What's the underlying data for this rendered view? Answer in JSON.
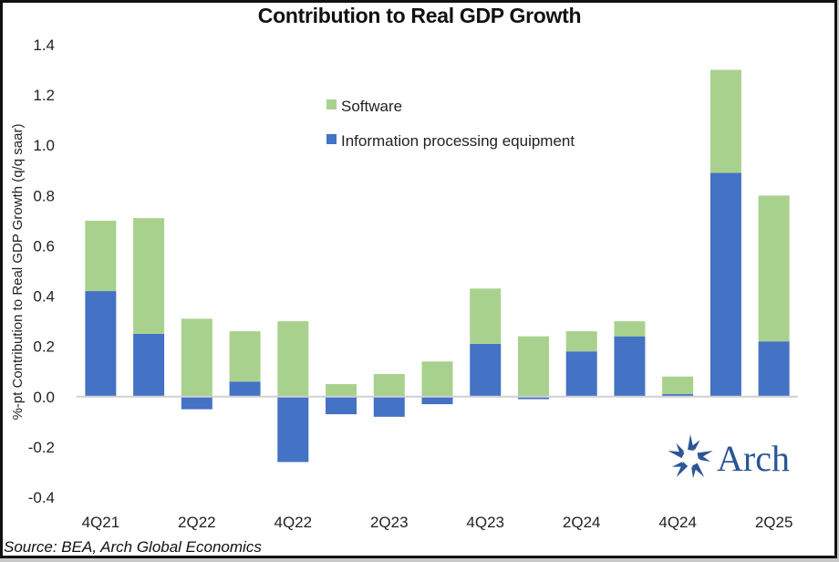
{
  "chart_data": {
    "type": "bar",
    "stacked": true,
    "title": "Contribution to Real GDP Growth",
    "xlabel": "",
    "ylabel": "%-pt Contribution to Real GDP Growth (q/q saar)",
    "ylim": [
      -0.4,
      1.4
    ],
    "yticks": [
      -0.4,
      -0.2,
      0.0,
      0.2,
      0.4,
      0.6,
      0.8,
      1.0,
      1.2,
      1.4
    ],
    "ytick_labels": [
      "-0.4",
      "-0.2",
      "0.0",
      "0.2",
      "0.4",
      "0.6",
      "0.8",
      "1.0",
      "1.2",
      "1.4"
    ],
    "categories": [
      "4Q21",
      "1Q22",
      "2Q22",
      "3Q22",
      "4Q22",
      "1Q23",
      "2Q23",
      "3Q23",
      "4Q23",
      "1Q24",
      "2Q24",
      "3Q24",
      "4Q24",
      "1Q25",
      "2Q25"
    ],
    "xtick_labels": [
      "4Q21",
      "",
      "2Q22",
      "",
      "4Q22",
      "",
      "2Q23",
      "",
      "4Q23",
      "",
      "2Q24",
      "",
      "4Q24",
      "",
      "2Q25"
    ],
    "series": [
      {
        "name": "Information processing equipment",
        "color": "#4472C4",
        "values": [
          0.42,
          0.25,
          -0.05,
          0.06,
          -0.26,
          -0.07,
          -0.08,
          -0.03,
          0.21,
          -0.01,
          0.18,
          0.24,
          0.01,
          0.89,
          0.22
        ]
      },
      {
        "name": "Software",
        "color": "#A9D18E",
        "values": [
          0.28,
          0.46,
          0.31,
          0.2,
          0.3,
          0.05,
          0.09,
          0.14,
          0.22,
          0.24,
          0.08,
          0.06,
          0.07,
          0.41,
          0.58
        ]
      }
    ],
    "legend": {
      "placement": "top-center",
      "entries": [
        "Software",
        "Information processing equipment"
      ]
    },
    "grid": false,
    "source": "Source: BEA, Arch Global Economics"
  },
  "logo": {
    "text": "Arch",
    "color": "#2a5597"
  }
}
